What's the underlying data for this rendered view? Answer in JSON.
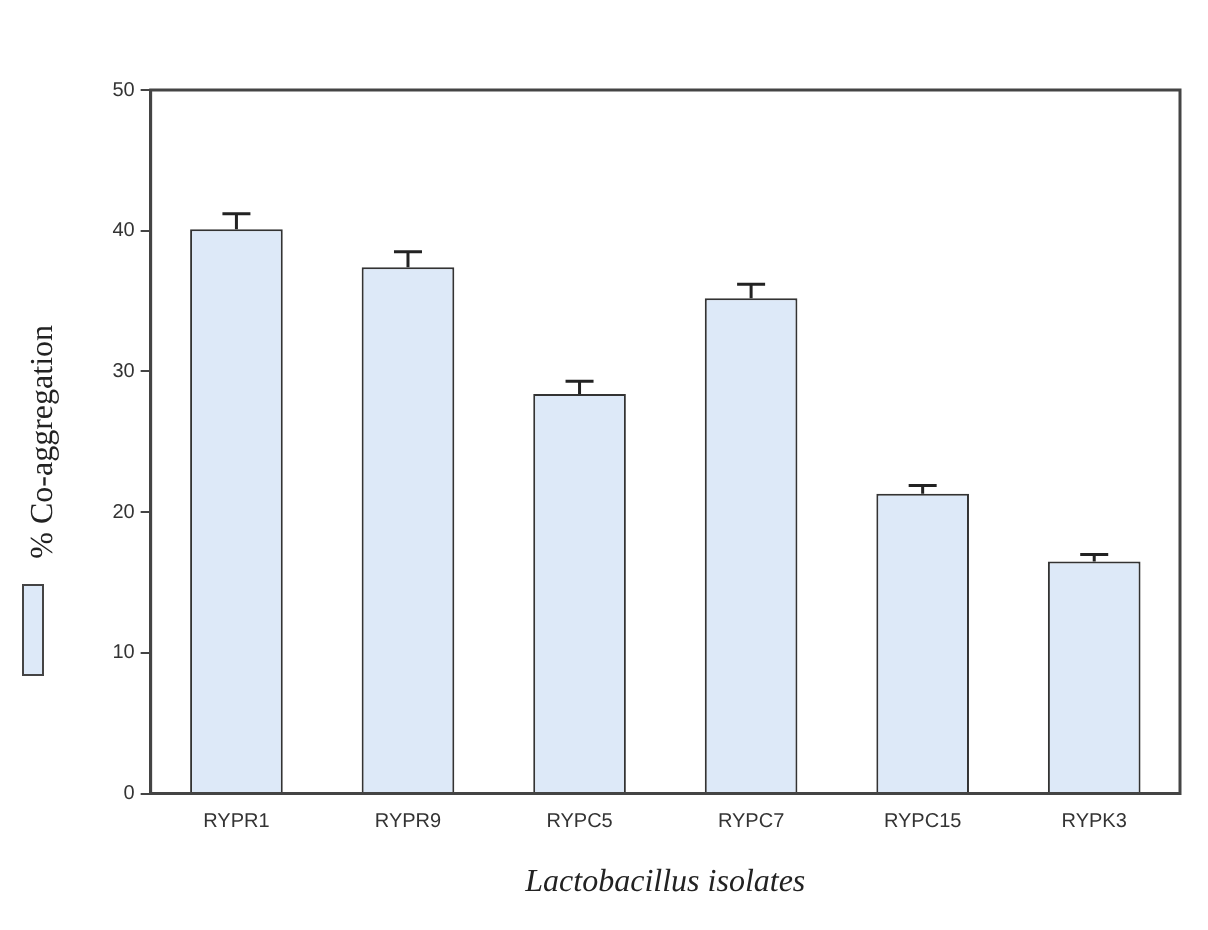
{
  "chart_data": {
    "type": "bar",
    "ylabel": "% Co-aggregation",
    "xlabel": "Lactobacillus isolates",
    "categories": [
      "RYPR1",
      "RYPR9",
      "RYPC5",
      "RYPC7",
      "RYPC15",
      "RYPK3"
    ],
    "values": [
      40.1,
      37.4,
      28.4,
      35.2,
      21.3,
      16.5
    ],
    "errors": [
      [
        40.1,
        41.2
      ],
      [
        37.4,
        38.5
      ],
      [
        28.4,
        29.3
      ],
      [
        35.2,
        36.2
      ],
      [
        21.3,
        21.9
      ],
      [
        16.5,
        17.0
      ]
    ],
    "color": "#dde9f8",
    "ylim": [
      0,
      50
    ],
    "yticks": [
      0,
      10,
      20,
      30,
      40,
      50
    ],
    "grid": false
  }
}
